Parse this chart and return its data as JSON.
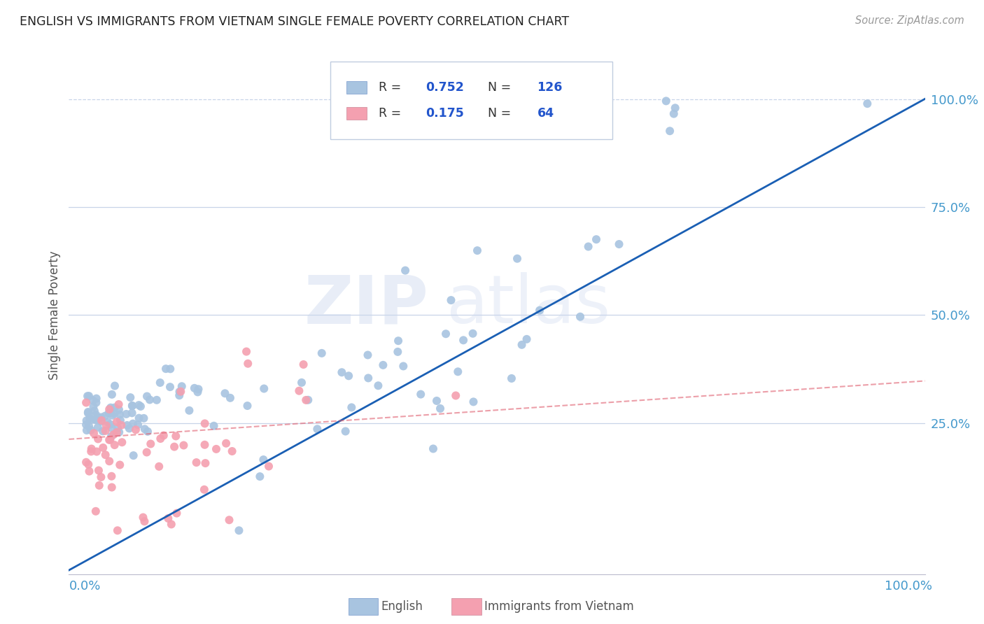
{
  "title": "ENGLISH VS IMMIGRANTS FROM VIETNAM SINGLE FEMALE POVERTY CORRELATION CHART",
  "source": "Source: ZipAtlas.com",
  "ylabel": "Single Female Poverty",
  "blue_R": 0.752,
  "blue_N": 126,
  "pink_R": 0.175,
  "pink_N": 64,
  "blue_color": "#a8c4e0",
  "pink_color": "#f4a0b0",
  "blue_line_color": "#1a5fb4",
  "pink_line_color": "#e06070",
  "watermark_zip": "ZIP",
  "watermark_atlas": "atlas",
  "bg_color": "#ffffff",
  "grid_color": "#c8d4e8",
  "title_color": "#222222",
  "axis_label_color": "#4499cc",
  "legend_R_color": "#222222",
  "legend_N_color": "#2255cc",
  "ytick_values": [
    0.25,
    0.5,
    0.75,
    1.0
  ],
  "ytick_labels": [
    "25.0%",
    "50.0%",
    "75.0%",
    "100.0%"
  ],
  "xtick_values": [
    0.0,
    1.0
  ],
  "xtick_labels": [
    "0.0%",
    "100.0%"
  ]
}
